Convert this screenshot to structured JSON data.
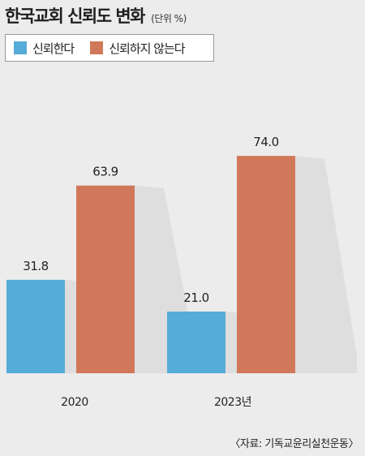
{
  "chart_data": {
    "type": "bar",
    "title": "한국교회 신뢰도 변화",
    "unit": "(단위 %)",
    "categories": [
      "2020",
      "2023년"
    ],
    "series": [
      {
        "name": "신뢰한다",
        "values": [
          31.8,
          21.0
        ],
        "labels": [
          "31.8",
          "21.0"
        ],
        "color": "#56acd9"
      },
      {
        "name": "신뢰하지 않는다",
        "values": [
          63.9,
          74.0
        ],
        "labels": [
          "63.9",
          "74.0"
        ],
        "color": "#d2785a"
      }
    ],
    "source": "〈자료: 기독교윤리실천운동〉"
  }
}
